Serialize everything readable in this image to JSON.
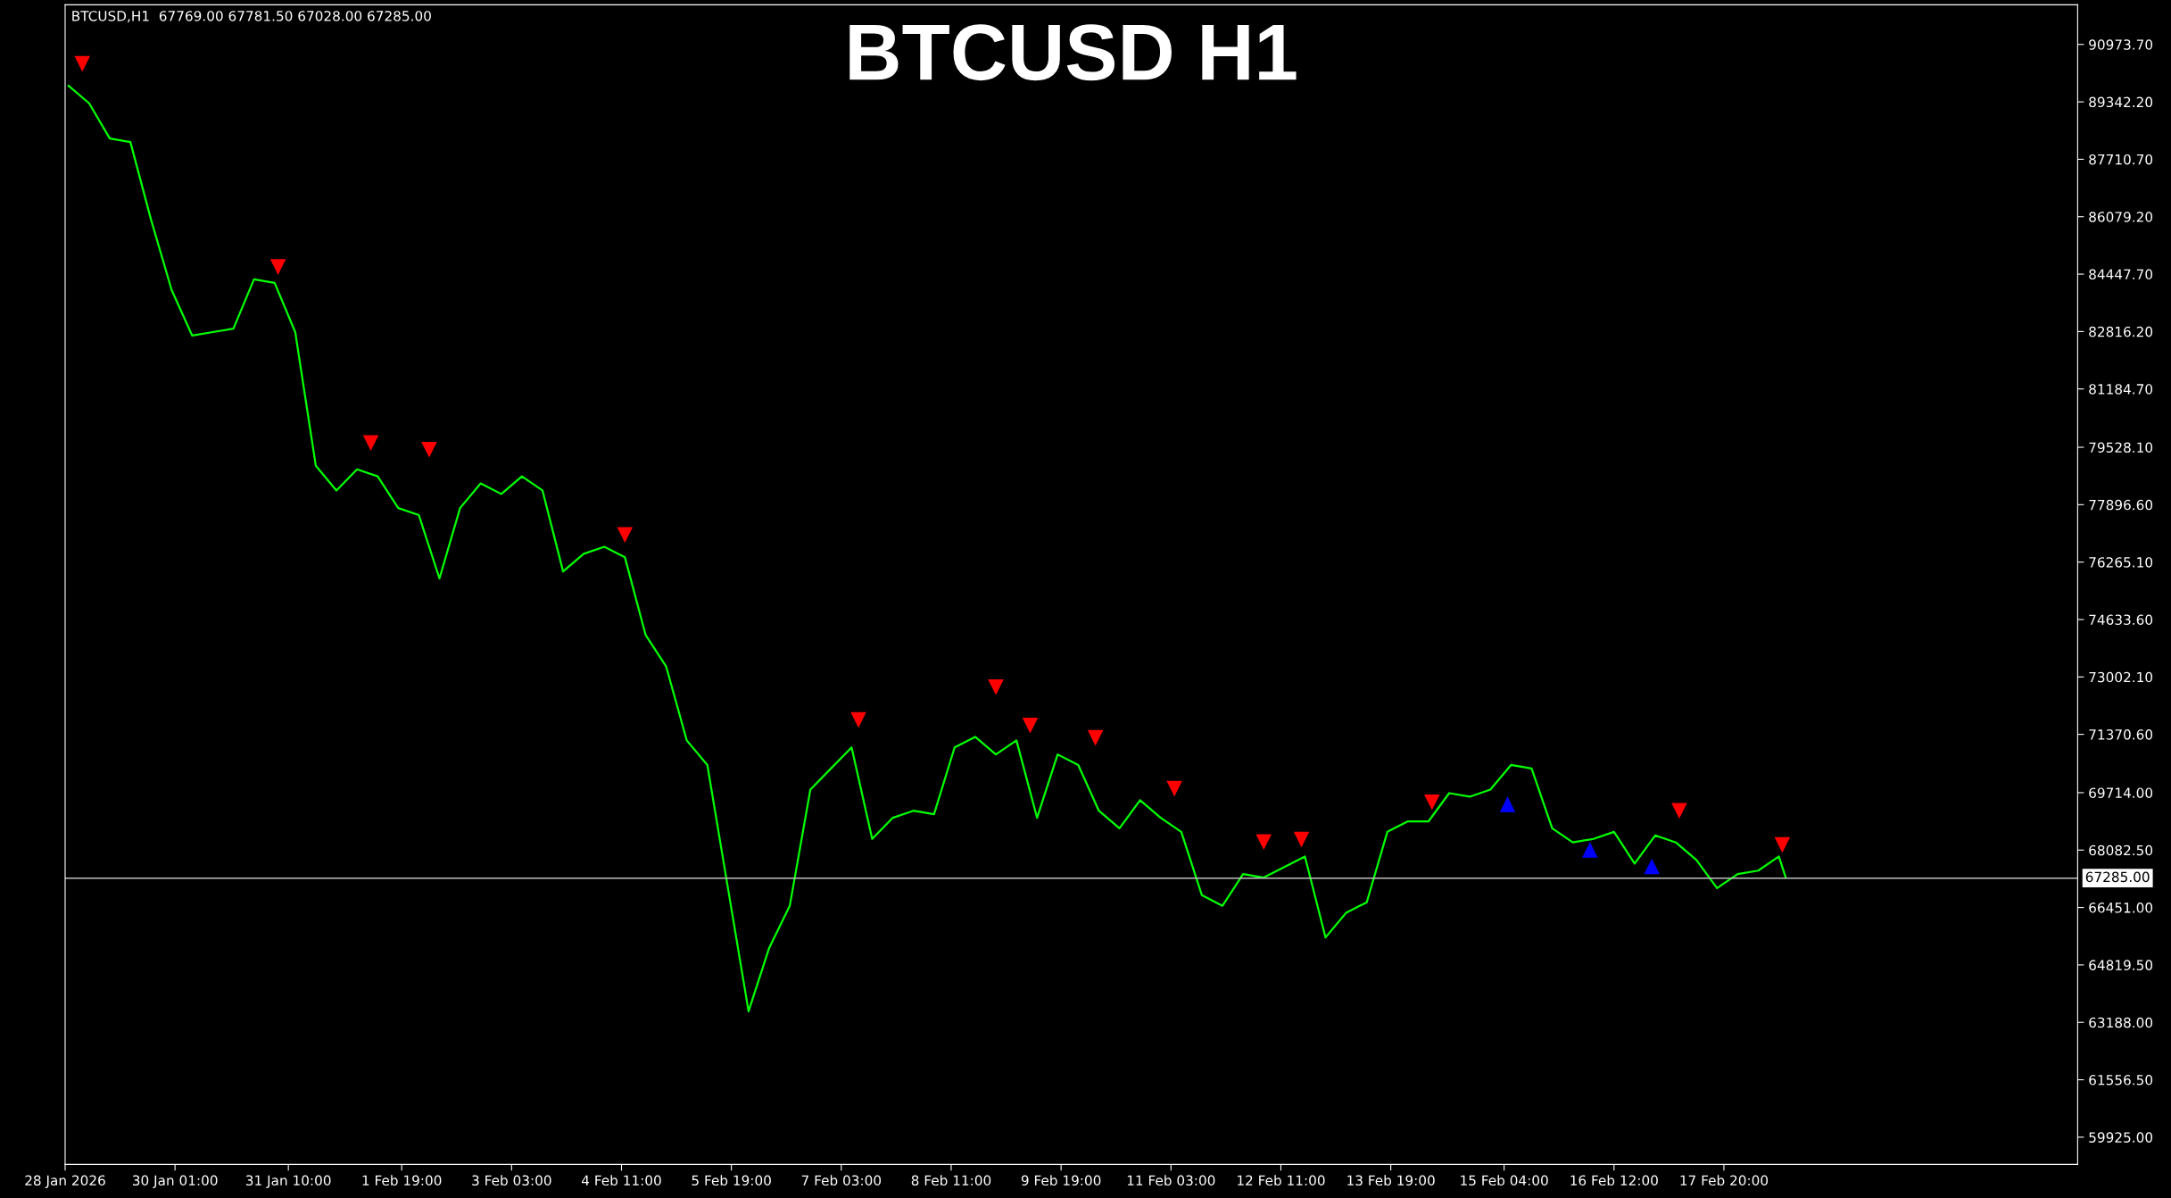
{
  "chart_data": {
    "type": "line",
    "title": "BTCUSD H1",
    "annotations": [
      "BTCUSD,H1  67769.00 67781.50 67028.00 67285.00"
    ],
    "x": [
      "2026-01-28T18:00",
      "2026-01-29T00:00",
      "2026-01-29T06:00",
      "2026-01-29T12:00",
      "2026-01-29T18:00",
      "2026-01-30T00:00",
      "2026-01-30T06:00",
      "2026-01-30T12:00",
      "2026-01-30T18:00",
      "2026-01-31T00:00",
      "2026-01-31T06:00",
      "2026-01-31T12:00",
      "2026-01-31T18:00",
      "2026-02-01T00:00",
      "2026-02-01T06:00",
      "2026-02-01T12:00",
      "2026-02-01T18:00",
      "2026-02-02T00:00",
      "2026-02-02T06:00",
      "2026-02-02T12:00",
      "2026-02-02T18:00",
      "2026-02-03T00:00",
      "2026-02-03T06:00",
      "2026-02-03T12:00",
      "2026-02-03T18:00",
      "2026-02-04T00:00",
      "2026-02-04T06:00",
      "2026-02-04T12:00",
      "2026-02-04T18:00",
      "2026-02-05T00:00",
      "2026-02-05T06:00",
      "2026-02-05T12:00",
      "2026-02-05T18:00",
      "2026-02-06T00:00",
      "2026-02-06T06:00",
      "2026-02-06T12:00",
      "2026-02-06T18:00",
      "2026-02-07T00:00",
      "2026-02-07T06:00",
      "2026-02-07T12:00",
      "2026-02-07T18:00",
      "2026-02-08T00:00",
      "2026-02-08T06:00",
      "2026-02-08T12:00",
      "2026-02-08T18:00",
      "2026-02-09T00:00",
      "2026-02-09T06:00",
      "2026-02-09T12:00",
      "2026-02-09T18:00",
      "2026-02-10T00:00",
      "2026-02-10T06:00",
      "2026-02-10T12:00",
      "2026-02-10T18:00",
      "2026-02-11T00:00",
      "2026-02-11T06:00",
      "2026-02-11T12:00",
      "2026-02-11T18:00",
      "2026-02-12T00:00",
      "2026-02-12T06:00",
      "2026-02-12T12:00",
      "2026-02-12T18:00",
      "2026-02-13T00:00",
      "2026-02-13T06:00",
      "2026-02-13T12:00",
      "2026-02-13T18:00",
      "2026-02-14T00:00",
      "2026-02-14T06:00",
      "2026-02-14T12:00",
      "2026-02-14T18:00",
      "2026-02-15T00:00",
      "2026-02-15T06:00",
      "2026-02-15T12:00",
      "2026-02-15T18:00",
      "2026-02-16T00:00",
      "2026-02-16T06:00",
      "2026-02-16T12:00",
      "2026-02-16T18:00",
      "2026-02-17T00:00",
      "2026-02-17T06:00",
      "2026-02-17T12:00",
      "2026-02-17T18:00",
      "2026-02-18T00:00",
      "2026-02-18T06:00",
      "2026-02-18T12:00",
      "2026-02-18T14:00"
    ],
    "series": [
      {
        "color": "#00ff00",
        "values": [
          89800,
          89300,
          88300,
          88200,
          86000,
          84000,
          82700,
          82800,
          82900,
          84300,
          84200,
          82800,
          79000,
          78300,
          78900,
          78700,
          77800,
          77600,
          75800,
          77800,
          78500,
          78200,
          78700,
          78300,
          76000,
          76500,
          76700,
          76400,
          74200,
          73300,
          71200,
          70500,
          67000,
          63500,
          65300,
          66500,
          69800,
          70400,
          71000,
          68400,
          69000,
          69200,
          69100,
          71000,
          71300,
          70800,
          71200,
          69000,
          70800,
          70500,
          69200,
          68700,
          69500,
          69000,
          68600,
          66800,
          66500,
          67400,
          67300,
          67600,
          67900,
          65600,
          66300,
          66600,
          68600,
          68900,
          68900,
          69700,
          69600,
          69800,
          70500,
          70400,
          68700,
          68300,
          68400,
          68600,
          67700,
          68500,
          68300,
          67800,
          67000,
          67400,
          67500,
          67900,
          67300
        ]
      },
      {
        "type": "scatter",
        "color": "#ff0000",
        "marker": "triangle",
        "x": [
          "2026-01-28T22:00",
          "2026-01-31T07:00",
          "2026-02-01T10:00",
          "2026-02-02T03:00",
          "2026-02-04T12:00",
          "2026-02-07T08:00",
          "2026-02-09T00:00",
          "2026-02-09T10:00",
          "2026-02-10T05:00",
          "2026-02-11T04:00",
          "2026-02-12T06:00",
          "2026-02-12T17:00",
          "2026-02-14T07:00",
          "2026-02-17T07:00",
          "2026-02-18T13:00"
        ],
        "values": [
          90430,
          84660,
          79660,
          79470,
          77050,
          71790,
          72720,
          71630,
          71280,
          69840,
          68320,
          68390,
          69450,
          69210,
          68240
        ]
      },
      {
        "type": "scatter",
        "color": "#0000ff",
        "marker": "triangle",
        "x": [
          "2026-02-15T05:00",
          "2026-02-16T05:00",
          "2026-02-16T23:00"
        ],
        "values": [
          69370,
          68080,
          67610
        ]
      }
    ],
    "xlim": [
      "2026-01-28T17:00",
      "2026-02-22T03:00"
    ],
    "xticks": [
      {
        "value": "2026-01-28T17:00",
        "label": "28 Jan 2026"
      },
      {
        "value": "2026-01-30T01:00",
        "label": "30 Jan 01:00"
      },
      {
        "value": "2026-01-31T10:00",
        "label": "31 Jan 10:00"
      },
      {
        "value": "2026-02-01T19:00",
        "label": "1 Feb 19:00"
      },
      {
        "value": "2026-02-03T03:00",
        "label": "3 Feb 03:00"
      },
      {
        "value": "2026-02-04T11:00",
        "label": "4 Feb 11:00"
      },
      {
        "value": "2026-02-05T19:00",
        "label": "5 Feb 19:00"
      },
      {
        "value": "2026-02-07T03:00",
        "label": "7 Feb 03:00"
      },
      {
        "value": "2026-02-08T11:00",
        "label": "8 Feb 11:00"
      },
      {
        "value": "2026-02-09T19:00",
        "label": "9 Feb 19:00"
      },
      {
        "value": "2026-02-11T03:00",
        "label": "11 Feb 03:00"
      },
      {
        "value": "2026-02-12T11:00",
        "label": "12 Feb 11:00"
      },
      {
        "value": "2026-02-13T19:00",
        "label": "13 Feb 19:00"
      },
      {
        "value": "2026-02-15T04:00",
        "label": "15 Feb 04:00"
      },
      {
        "value": "2026-02-16T12:00",
        "label": "16 Feb 12:00"
      },
      {
        "value": "2026-02-17T20:00",
        "label": "17 Feb 20:00"
      }
    ],
    "ylim": [
      59150,
      92100
    ],
    "yticks": [
      {
        "value": 90973.7,
        "label": "90973.70"
      },
      {
        "value": 89342.2,
        "label": "89342.20"
      },
      {
        "value": 87710.7,
        "label": "87710.70"
      },
      {
        "value": 86079.2,
        "label": "86079.20"
      },
      {
        "value": 84447.7,
        "label": "84447.70"
      },
      {
        "value": 82816.2,
        "label": "82816.20"
      },
      {
        "value": 81184.7,
        "label": "81184.70"
      },
      {
        "value": 79528.1,
        "label": "79528.10"
      },
      {
        "value": 77896.6,
        "label": "77896.60"
      },
      {
        "value": 76265.1,
        "label": "76265.10"
      },
      {
        "value": 74633.6,
        "label": "74633.60"
      },
      {
        "value": 73002.1,
        "label": "73002.10"
      },
      {
        "value": 71370.6,
        "label": "71370.60"
      },
      {
        "value": 69714.0,
        "label": "69714.00"
      },
      {
        "value": 68082.5,
        "label": "68082.50"
      },
      {
        "value": 66451.0,
        "label": "66451.00"
      },
      {
        "value": 64819.5,
        "label": "64819.50"
      },
      {
        "value": 63188.0,
        "label": "63188.00"
      },
      {
        "value": 61556.5,
        "label": "61556.50"
      },
      {
        "value": 59925.0,
        "label": "59925.00"
      }
    ],
    "ref_lines": [
      {
        "axis": "y",
        "value": 67285,
        "label": "67285.00",
        "color": "#c0c0c0"
      }
    ],
    "grid": false,
    "legend": false
  }
}
